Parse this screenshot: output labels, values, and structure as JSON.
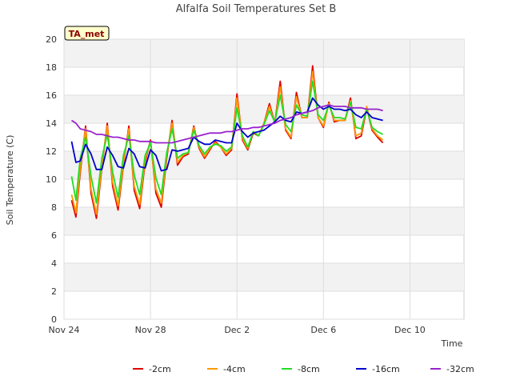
{
  "chart_data": {
    "type": "line",
    "title": "Alfalfa Soil Temperatures Set B",
    "xlabel": "Time",
    "ylabel": "Soil Temperature (C)",
    "station_label": "TA_met",
    "ylim": [
      0,
      20
    ],
    "yticks": [
      0,
      2,
      4,
      6,
      8,
      10,
      12,
      14,
      16,
      18,
      20
    ],
    "xlim": [
      0,
      18.5
    ],
    "xticks": [
      {
        "day": 0,
        "label": "Nov 24"
      },
      {
        "day": 4,
        "label": "Nov 28"
      },
      {
        "day": 8,
        "label": "Dec 2"
      },
      {
        "day": 12,
        "label": "Dec 6"
      },
      {
        "day": 16,
        "label": "Dec 10"
      }
    ],
    "grid": true,
    "legend_position": "bottom",
    "series": [
      {
        "name": "-2cm",
        "color": "#e00000",
        "x": [
          0.35,
          0.55,
          0.75,
          1.0,
          1.25,
          1.5,
          1.75,
          2.0,
          2.25,
          2.5,
          2.75,
          3.0,
          3.25,
          3.5,
          3.75,
          4.0,
          4.25,
          4.5,
          4.75,
          5.0,
          5.25,
          5.5,
          5.75,
          6.0,
          6.25,
          6.5,
          6.75,
          7.0,
          7.25,
          7.5,
          7.75,
          8.0,
          8.25,
          8.5,
          8.75,
          9.0,
          9.25,
          9.5,
          9.75,
          10.0,
          10.25,
          10.5,
          10.75,
          11.0,
          11.25,
          11.5,
          11.75,
          12.0,
          12.25,
          12.5,
          12.75,
          13.0,
          13.25,
          13.5,
          13.75,
          14.0,
          14.25,
          14.5,
          14.75,
          15.0,
          15.25,
          15.5,
          15.75,
          16.0,
          16.25,
          16.5,
          16.75,
          17.0,
          17.25
        ],
        "y": [
          8.5,
          7.3,
          10.5,
          13.8,
          9.0,
          7.2,
          10.8,
          14.0,
          9.5,
          7.8,
          11.0,
          13.8,
          9.2,
          7.9,
          11.2,
          12.8,
          9.0,
          8.0,
          11.5,
          14.2,
          11.0,
          11.6,
          11.8,
          13.8,
          12.2,
          11.5,
          12.1,
          12.7,
          12.3,
          11.7,
          12.1,
          16.1,
          12.8,
          12.1,
          13.3,
          13.1,
          14.0,
          15.4,
          14.0,
          17.0,
          13.5,
          12.9,
          16.2,
          14.4,
          14.4,
          18.1,
          14.4,
          13.7,
          15.5,
          14.1,
          14.2,
          14.2,
          15.8,
          12.9,
          13.1,
          15.1,
          13.5,
          13.0,
          12.6,
          null,
          null,
          null,
          null,
          null,
          null,
          null,
          null,
          null,
          null
        ]
      },
      {
        "name": "-4cm",
        "color": "#ff9900",
        "x": [
          0.35,
          0.55,
          0.75,
          1.0,
          1.25,
          1.5,
          1.75,
          2.0,
          2.25,
          2.5,
          2.75,
          3.0,
          3.25,
          3.5,
          3.75,
          4.0,
          4.25,
          4.5,
          4.75,
          5.0,
          5.25,
          5.5,
          5.75,
          6.0,
          6.25,
          6.5,
          6.75,
          7.0,
          7.25,
          7.5,
          7.75,
          8.0,
          8.25,
          8.5,
          8.75,
          9.0,
          9.25,
          9.5,
          9.75,
          10.0,
          10.25,
          10.5,
          10.75,
          11.0,
          11.25,
          11.5,
          11.75,
          12.0,
          12.25,
          12.5,
          12.75,
          13.0,
          13.25,
          13.5,
          13.75,
          14.0,
          14.25,
          14.5,
          14.75,
          15.0,
          15.25,
          15.5,
          15.75,
          16.0,
          16.25,
          16.5,
          16.75,
          17.0,
          17.25
        ],
        "y": [
          8.9,
          7.6,
          10.8,
          13.6,
          9.3,
          7.5,
          11.0,
          13.8,
          9.8,
          8.1,
          11.2,
          13.6,
          9.5,
          8.2,
          11.4,
          12.7,
          9.3,
          8.3,
          11.7,
          14.0,
          11.2,
          11.7,
          11.9,
          13.7,
          12.3,
          11.6,
          12.2,
          12.6,
          12.3,
          11.8,
          12.2,
          15.8,
          12.9,
          12.2,
          13.4,
          13.1,
          14.0,
          15.2,
          14.0,
          16.6,
          13.6,
          13.0,
          15.9,
          14.4,
          14.4,
          17.7,
          14.4,
          13.8,
          15.4,
          14.2,
          14.2,
          14.2,
          15.6,
          13.1,
          13.3,
          15.2,
          13.6,
          13.1,
          12.8,
          null,
          null,
          null,
          null,
          null,
          null,
          null,
          null,
          null,
          null
        ]
      },
      {
        "name": "-8cm",
        "color": "#22dd22",
        "x": [
          0.35,
          0.55,
          0.75,
          1.0,
          1.25,
          1.5,
          1.75,
          2.0,
          2.25,
          2.5,
          2.75,
          3.0,
          3.25,
          3.5,
          3.75,
          4.0,
          4.25,
          4.5,
          4.75,
          5.0,
          5.25,
          5.5,
          5.75,
          6.0,
          6.25,
          6.5,
          6.75,
          7.0,
          7.25,
          7.5,
          7.75,
          8.0,
          8.25,
          8.5,
          8.75,
          9.0,
          9.25,
          9.5,
          9.75,
          10.0,
          10.25,
          10.5,
          10.75,
          11.0,
          11.25,
          11.5,
          11.75,
          12.0,
          12.25,
          12.5,
          12.75,
          13.0,
          13.25,
          13.5,
          13.75,
          14.0,
          14.25,
          14.5,
          14.75,
          15.0,
          15.25,
          15.5,
          15.75,
          16.0,
          16.25,
          16.5,
          16.75,
          17.0,
          17.25
        ],
        "y": [
          10.2,
          8.5,
          11.5,
          13.0,
          10.2,
          8.3,
          11.5,
          13.2,
          10.5,
          8.7,
          11.7,
          13.1,
          10.3,
          8.9,
          11.7,
          12.6,
          10.1,
          8.9,
          11.9,
          13.6,
          11.5,
          11.8,
          11.9,
          13.5,
          12.4,
          11.8,
          12.3,
          12.5,
          12.4,
          12.0,
          12.3,
          15.1,
          13.1,
          12.3,
          13.4,
          13.1,
          13.9,
          14.9,
          14.1,
          16.0,
          13.9,
          13.4,
          15.3,
          14.6,
          14.5,
          17.0,
          14.6,
          14.2,
          15.3,
          14.4,
          14.4,
          14.3,
          15.5,
          13.7,
          13.6,
          15.0,
          13.7,
          13.4,
          13.2,
          null,
          null,
          null,
          null,
          null,
          null,
          null,
          null,
          null,
          null
        ]
      },
      {
        "name": "-16cm",
        "color": "#0000cc",
        "x": [
          0.35,
          0.55,
          0.75,
          1.0,
          1.25,
          1.5,
          1.75,
          2.0,
          2.25,
          2.5,
          2.75,
          3.0,
          3.25,
          3.5,
          3.75,
          4.0,
          4.25,
          4.5,
          4.75,
          5.0,
          5.25,
          5.5,
          5.75,
          6.0,
          6.25,
          6.5,
          6.75,
          7.0,
          7.25,
          7.5,
          7.75,
          8.0,
          8.25,
          8.5,
          8.75,
          9.0,
          9.25,
          9.5,
          9.75,
          10.0,
          10.25,
          10.5,
          10.75,
          11.0,
          11.25,
          11.5,
          11.75,
          12.0,
          12.25,
          12.5,
          12.75,
          13.0,
          13.25,
          13.5,
          13.75,
          14.0,
          14.25,
          14.5,
          14.75,
          15.0,
          15.25,
          15.5,
          15.75,
          16.0,
          16.25,
          16.5,
          16.75,
          17.0,
          17.25
        ],
        "y": [
          12.7,
          11.2,
          11.3,
          12.5,
          11.8,
          10.7,
          10.7,
          12.3,
          11.7,
          10.9,
          10.8,
          12.2,
          11.8,
          10.9,
          10.8,
          12.1,
          11.7,
          10.6,
          10.7,
          12.1,
          12.0,
          12.1,
          12.2,
          13.0,
          12.7,
          12.5,
          12.5,
          12.8,
          12.7,
          12.6,
          12.6,
          14.0,
          13.4,
          13.0,
          13.3,
          13.4,
          13.5,
          13.8,
          14.1,
          14.5,
          14.2,
          14.1,
          14.8,
          14.7,
          14.8,
          15.8,
          15.3,
          15.0,
          15.2,
          15.0,
          15.0,
          14.9,
          15.0,
          14.6,
          14.4,
          14.8,
          14.4,
          14.3,
          14.2,
          null,
          null,
          null,
          null,
          null,
          null,
          null,
          null,
          null,
          null
        ]
      },
      {
        "name": "-32cm",
        "color": "#9922cc",
        "x": [
          0.35,
          0.55,
          0.75,
          1.0,
          1.25,
          1.5,
          1.75,
          2.0,
          2.25,
          2.5,
          2.75,
          3.0,
          3.25,
          3.5,
          3.75,
          4.0,
          4.25,
          4.5,
          4.75,
          5.0,
          5.25,
          5.5,
          5.75,
          6.0,
          6.25,
          6.5,
          6.75,
          7.0,
          7.25,
          7.5,
          7.75,
          8.0,
          8.25,
          8.5,
          8.75,
          9.0,
          9.25,
          9.5,
          9.75,
          10.0,
          10.25,
          10.5,
          10.75,
          11.0,
          11.25,
          11.5,
          11.75,
          12.0,
          12.25,
          12.5,
          12.75,
          13.0,
          13.25,
          13.5,
          13.75,
          14.0,
          14.25,
          14.5,
          14.75,
          15.0,
          15.25,
          15.5,
          15.75,
          16.0,
          16.25,
          16.5,
          16.75,
          17.0,
          17.25
        ],
        "y": [
          14.2,
          14.0,
          13.6,
          13.5,
          13.4,
          13.2,
          13.2,
          13.1,
          13.0,
          13.0,
          12.9,
          12.8,
          12.8,
          12.7,
          12.7,
          12.7,
          12.6,
          12.6,
          12.6,
          12.6,
          12.7,
          12.8,
          12.9,
          13.0,
          13.1,
          13.2,
          13.3,
          13.3,
          13.3,
          13.4,
          13.4,
          13.5,
          13.6,
          13.6,
          13.7,
          13.7,
          13.8,
          13.9,
          14.0,
          14.2,
          14.3,
          14.4,
          14.6,
          14.7,
          14.8,
          14.9,
          15.1,
          15.2,
          15.3,
          15.2,
          15.2,
          15.2,
          15.1,
          15.1,
          15.1,
          15.0,
          15.0,
          15.0,
          14.9,
          null,
          null,
          null,
          null,
          null,
          null,
          null,
          null,
          null,
          null
        ]
      }
    ]
  }
}
